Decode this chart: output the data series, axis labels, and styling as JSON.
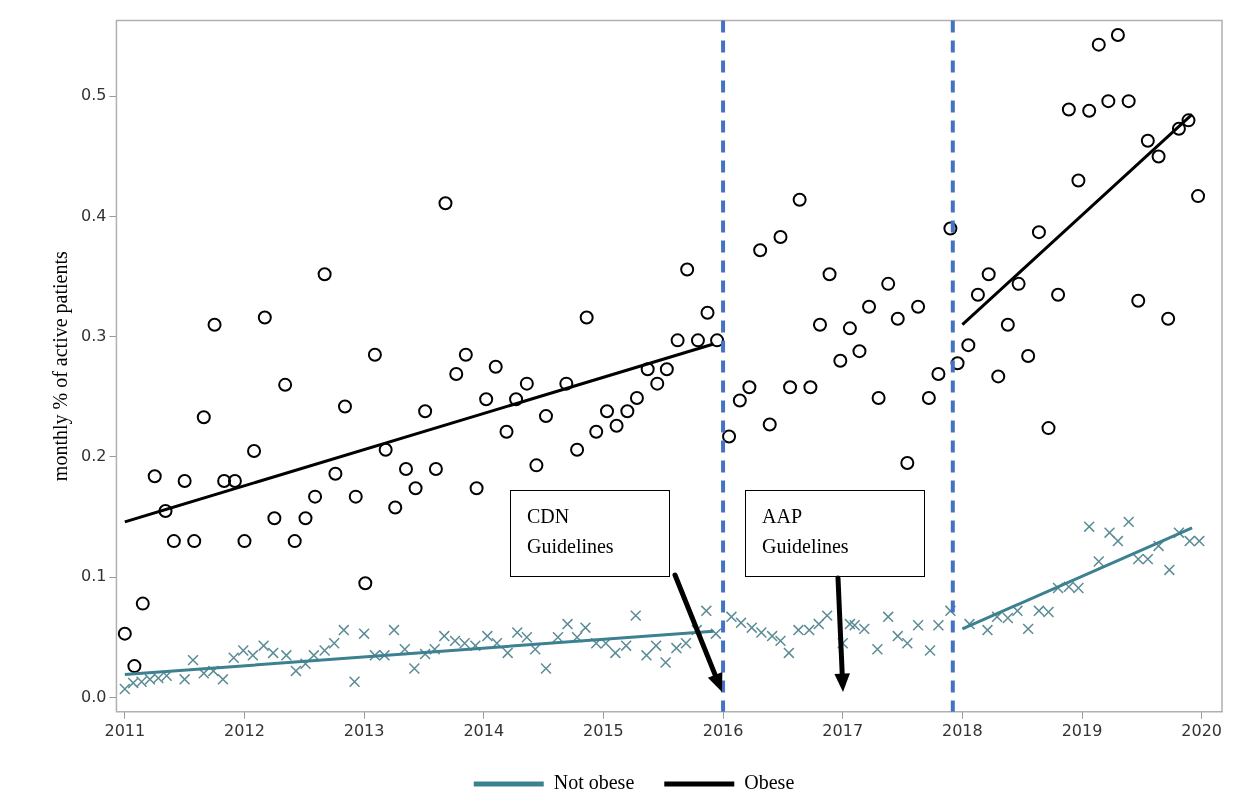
{
  "chart_data": {
    "type": "scatter",
    "ylabel": "monthly % of active patients",
    "xlim": [
      2010.93,
      2020.17
    ],
    "xticks": [
      2011,
      2012,
      2013,
      2014,
      2015,
      2016,
      2017,
      2018,
      2019,
      2020
    ],
    "ylim": [
      -0.012,
      0.563
    ],
    "yticks": [
      {
        "value": 0,
        "label": "0.0"
      },
      0.1,
      0.2,
      0.3,
      0.4,
      0.5
    ],
    "grid": false,
    "legend": "bottom",
    "series": [
      {
        "name": "Not obese",
        "type": "line",
        "color": "#3d8090",
        "line_style": "solid",
        "marker": "none",
        "x": [
          2011,
          2015.92,
          2017,
          2018,
          2019.92
        ],
        "values": [
          0.019,
          0.055,
          null,
          0.057,
          0.141
        ]
      },
      {
        "name": "Obese",
        "type": "line",
        "color": "#000000",
        "line_style": "solid",
        "marker": "none",
        "x": [
          2011,
          2015.92,
          2017,
          2018,
          2019.92
        ],
        "values": [
          0.146,
          0.294,
          null,
          0.31,
          0.485
        ]
      },
      {
        "type": "scatter",
        "color": "#5b8c96",
        "marker": "cross",
        "x": [
          2011.0,
          2011.07,
          2011.14,
          2011.21,
          2011.28,
          2011.35,
          2011.5,
          2011.57,
          2011.66,
          2011.74,
          2011.82,
          2011.91,
          2011.99,
          2012.07,
          2012.16,
          2012.24,
          2012.35,
          2012.43,
          2012.51,
          2012.58,
          2012.67,
          2012.75,
          2012.83,
          2012.92,
          2013.0,
          2013.09,
          2013.17,
          2013.25,
          2013.34,
          2013.42,
          2013.51,
          2013.59,
          2013.67,
          2013.76,
          2013.84,
          2013.93,
          2014.03,
          2014.11,
          2014.2,
          2014.28,
          2014.36,
          2014.43,
          2014.52,
          2014.62,
          2014.7,
          2014.78,
          2014.85,
          2014.94,
          2015.02,
          2015.1,
          2015.19,
          2015.27,
          2015.36,
          2015.44,
          2015.52,
          2015.61,
          2015.69,
          2015.78,
          2015.86,
          2015.94,
          2016.07,
          2016.15,
          2016.24,
          2016.32,
          2016.41,
          2016.48,
          2016.55,
          2016.63,
          2016.72,
          2016.8,
          2016.87,
          2017.0,
          2017.06,
          2017.1,
          2017.18,
          2017.29,
          2017.38,
          2017.46,
          2017.54,
          2017.63,
          2017.73,
          2017.8,
          2017.9,
          2018.06,
          2018.21,
          2018.29,
          2018.38,
          2018.46,
          2018.55,
          2018.64,
          2018.72,
          2018.8,
          2018.89,
          2018.97,
          2019.06,
          2019.14,
          2019.23,
          2019.3,
          2019.39,
          2019.47,
          2019.55,
          2019.64,
          2019.73,
          2019.81,
          2019.9,
          2019.98
        ],
        "values": [
          0.007,
          0.012,
          0.013,
          0.015,
          0.016,
          0.018,
          0.015,
          0.031,
          0.02,
          0.022,
          0.015,
          0.033,
          0.039,
          0.035,
          0.043,
          0.037,
          0.035,
          0.022,
          0.028,
          0.035,
          0.039,
          0.045,
          0.056,
          0.013,
          0.053,
          0.035,
          0.035,
          0.056,
          0.04,
          0.024,
          0.036,
          0.04,
          0.051,
          0.047,
          0.045,
          0.043,
          0.051,
          0.045,
          0.037,
          0.054,
          0.05,
          0.04,
          0.024,
          0.05,
          0.061,
          0.05,
          0.058,
          0.045,
          0.045,
          0.037,
          0.043,
          0.068,
          0.035,
          0.043,
          0.029,
          0.041,
          0.045,
          0.056,
          0.072,
          0.053,
          0.067,
          0.062,
          0.058,
          0.054,
          0.051,
          0.047,
          0.037,
          0.056,
          0.056,
          0.061,
          0.068,
          0.045,
          0.061,
          0.06,
          0.057,
          0.04,
          0.067,
          0.051,
          0.045,
          0.06,
          0.039,
          0.06,
          0.072,
          0.061,
          0.056,
          0.067,
          0.066,
          0.072,
          0.057,
          0.072,
          0.071,
          0.091,
          0.092,
          0.091,
          0.142,
          0.113,
          0.137,
          0.13,
          0.146,
          0.115,
          0.115,
          0.126,
          0.106,
          0.137,
          0.13,
          0.13
        ]
      },
      {
        "type": "scatter",
        "color": "#000000",
        "marker": "circle",
        "x": [
          2011.0,
          2011.08,
          2011.15,
          2011.25,
          2011.34,
          2011.41,
          2011.5,
          2011.58,
          2011.66,
          2011.75,
          2011.83,
          2011.92,
          2012.0,
          2012.08,
          2012.17,
          2012.25,
          2012.34,
          2012.42,
          2012.51,
          2012.59,
          2012.67,
          2012.76,
          2012.84,
          2012.93,
          2013.01,
          2013.09,
          2013.18,
          2013.26,
          2013.35,
          2013.43,
          2013.51,
          2013.6,
          2013.68,
          2013.77,
          2013.85,
          2013.94,
          2014.02,
          2014.1,
          2014.19,
          2014.27,
          2014.36,
          2014.44,
          2014.52,
          2014.69,
          2014.78,
          2014.86,
          2014.94,
          2015.03,
          2015.11,
          2015.2,
          2015.28,
          2015.37,
          2015.45,
          2015.53,
          2015.62,
          2015.7,
          2015.79,
          2015.87,
          2015.95,
          2016.05,
          2016.14,
          2016.22,
          2016.31,
          2016.39,
          2016.48,
          2016.56,
          2016.64,
          2016.73,
          2016.81,
          2016.89,
          2016.98,
          2017.06,
          2017.14,
          2017.22,
          2017.3,
          2017.38,
          2017.46,
          2017.54,
          2017.63,
          2017.72,
          2017.8,
          2017.9,
          2017.96,
          2018.05,
          2018.13,
          2018.22,
          2018.3,
          2018.38,
          2018.47,
          2018.55,
          2018.64,
          2018.72,
          2018.8,
          2018.89,
          2018.97,
          2019.06,
          2019.14,
          2019.22,
          2019.3,
          2019.39,
          2019.47,
          2019.55,
          2019.64,
          2019.72,
          2019.81,
          2019.89,
          2019.97
        ],
        "values": [
          0.053,
          0.026,
          0.078,
          0.184,
          0.155,
          0.13,
          0.18,
          0.13,
          0.233,
          0.31,
          0.18,
          0.18,
          0.13,
          0.205,
          0.316,
          0.149,
          0.26,
          0.13,
          0.149,
          0.167,
          0.352,
          0.186,
          0.242,
          0.167,
          0.095,
          0.285,
          0.206,
          0.158,
          0.19,
          0.174,
          0.238,
          0.19,
          0.411,
          0.269,
          0.285,
          0.174,
          0.248,
          0.275,
          0.221,
          0.248,
          0.261,
          0.193,
          0.234,
          0.261,
          0.206,
          0.316,
          0.221,
          0.238,
          0.226,
          0.238,
          0.249,
          0.273,
          0.261,
          0.273,
          0.297,
          0.356,
          0.297,
          0.32,
          0.297,
          0.217,
          0.247,
          0.258,
          0.372,
          0.227,
          0.383,
          0.258,
          0.414,
          0.258,
          0.31,
          0.352,
          0.28,
          0.307,
          0.288,
          0.325,
          0.249,
          0.344,
          0.315,
          0.195,
          0.325,
          0.249,
          0.269,
          0.39,
          0.278,
          0.293,
          0.335,
          0.352,
          0.267,
          0.31,
          0.344,
          0.284,
          0.387,
          0.224,
          0.335,
          0.489,
          0.43,
          0.488,
          0.543,
          0.496,
          0.551,
          0.496,
          0.33,
          0.463,
          0.45,
          0.315,
          0.473,
          0.48,
          0.417
        ]
      }
    ],
    "ref_lines": [
      {
        "axis": "x",
        "value": 2016,
        "color": "#4472c4",
        "line_style": "dashed"
      },
      {
        "axis": "x",
        "value": 2017.92,
        "color": "#4472c4",
        "line_style": "dashed"
      }
    ],
    "annotations": [
      "CDN Guidelines",
      "AAP Guidelines"
    ]
  }
}
